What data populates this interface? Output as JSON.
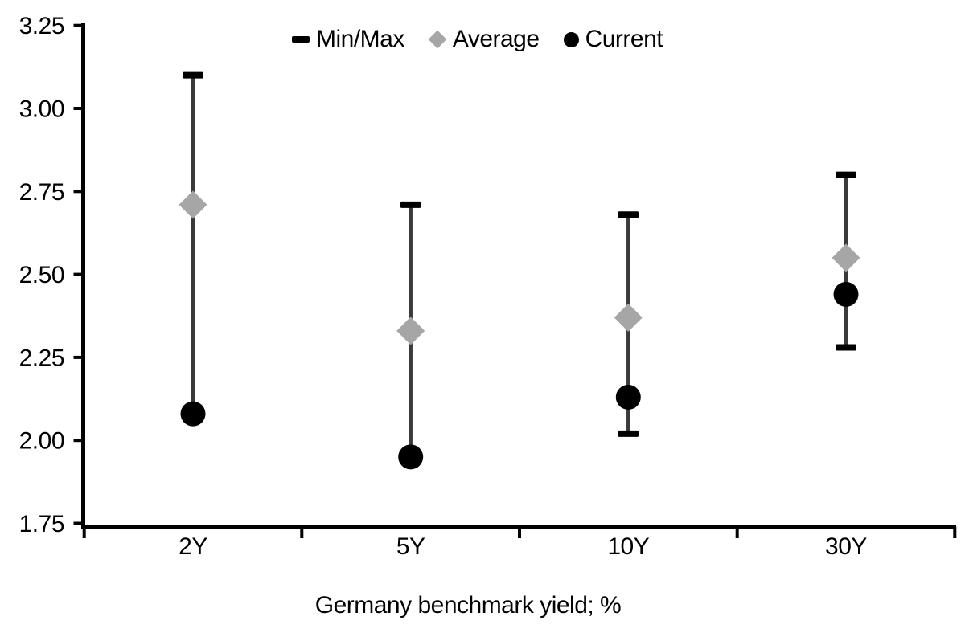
{
  "xaxis_title": "Germany benchmark yield; %",
  "chart_data": {
    "type": "scatter",
    "title": "",
    "xlabel": "Germany benchmark yield; %",
    "ylabel": "",
    "categories": [
      "2Y",
      "5Y",
      "10Y",
      "30Y"
    ],
    "ylim": [
      1.75,
      3.25
    ],
    "ytick_step": 0.25,
    "ytick_labels": [
      "3.25",
      "3.00",
      "2.75",
      "2.50",
      "2.25",
      "2.00",
      "1.75"
    ],
    "grid": "off",
    "legend_position": "top-center",
    "legend": [
      {
        "label": "Min/Max",
        "marker": "dash-icon",
        "color": "#000000"
      },
      {
        "label": "Average",
        "marker": "diamond-icon",
        "color": "#a6a6a6"
      },
      {
        "label": "Current",
        "marker": "circle-icon",
        "color": "#000000"
      }
    ],
    "series": [
      {
        "name": "Min/Max",
        "type": "range",
        "min": [
          2.08,
          1.95,
          2.02,
          2.28
        ],
        "max": [
          3.1,
          2.71,
          2.68,
          2.8
        ]
      },
      {
        "name": "Average",
        "type": "point",
        "marker": "diamond",
        "values": [
          2.71,
          2.33,
          2.37,
          2.55
        ]
      },
      {
        "name": "Current",
        "type": "point",
        "marker": "circle",
        "values": [
          2.08,
          1.95,
          2.13,
          2.44
        ]
      }
    ],
    "colors": {
      "axis": "#000000",
      "range_line": "#3a3a3a",
      "cap": "#000000",
      "average": "#a6a6a6",
      "current": "#000000"
    }
  }
}
